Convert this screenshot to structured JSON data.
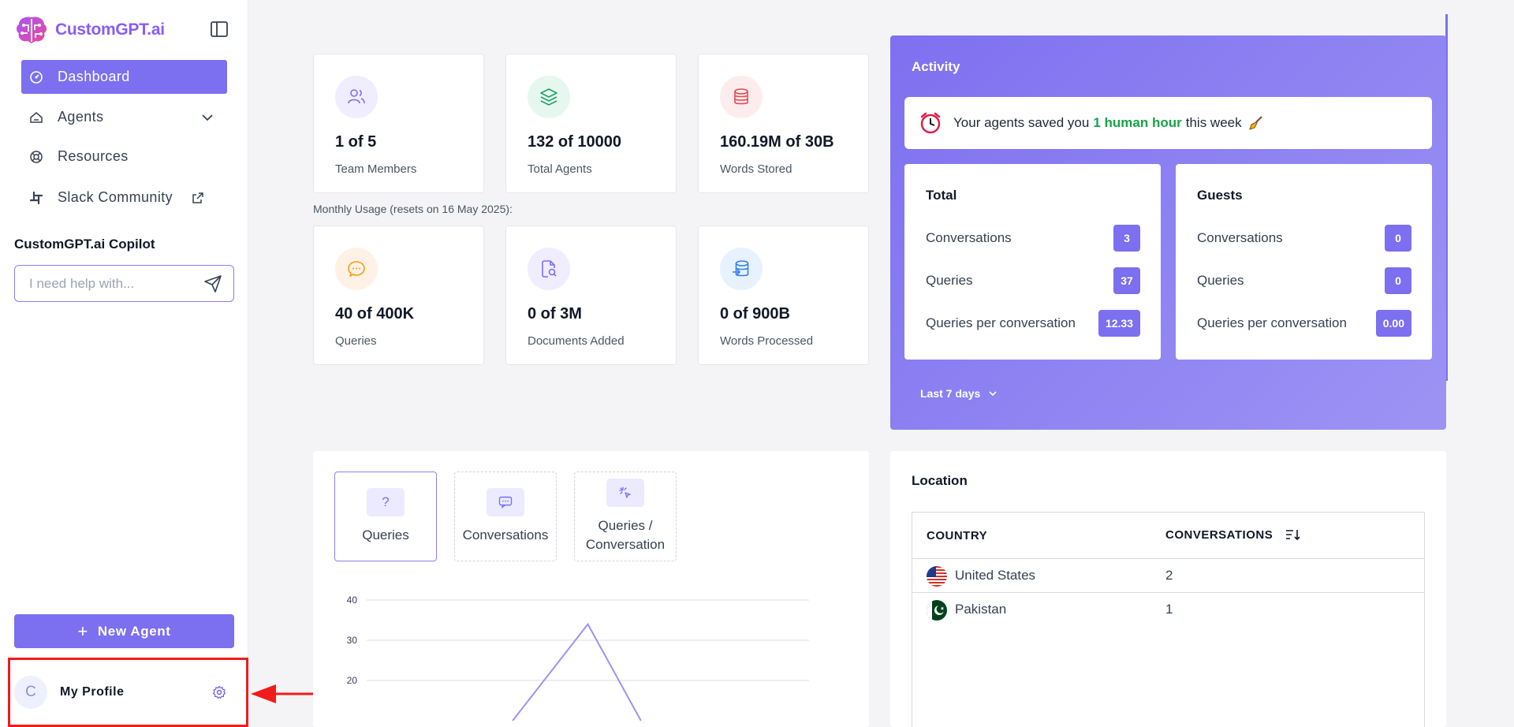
{
  "brand": {
    "name": "CustomGPT.ai",
    "accent": "#7c6ff0"
  },
  "sidebar": {
    "nav": [
      {
        "label": "Dashboard",
        "icon": "dashboard-icon",
        "active": true
      },
      {
        "label": "Agents",
        "icon": "agents-icon",
        "expandable": true
      },
      {
        "label": "Resources",
        "icon": "lifebuoy-icon"
      },
      {
        "label": "Slack Community",
        "icon": "slack-icon",
        "external": true
      }
    ],
    "copilot": {
      "title": "CustomGPT.ai Copilot",
      "placeholder": "I need help with..."
    },
    "new_agent_label": "New Agent",
    "profile": {
      "initial": "C",
      "name": "My Profile"
    }
  },
  "stats": {
    "team_members": {
      "value": "1 of 5",
      "label": "Team Members"
    },
    "total_agents": {
      "value": "132 of 10000",
      "label": "Total Agents"
    },
    "words_stored": {
      "value": "160.19M of 30B",
      "label": "Words Stored"
    },
    "monthly_note": "Monthly Usage (resets on 16 May 2025):",
    "queries": {
      "value": "40 of 400K",
      "label": "Queries"
    },
    "documents": {
      "value": "0 of 3M",
      "label": "Documents Added"
    },
    "words_processed": {
      "value": "0 of 900B",
      "label": "Words Processed"
    }
  },
  "activity": {
    "title": "Activity",
    "banner_prefix": "Your agents saved you",
    "banner_highlight": "1 human hour",
    "banner_suffix": "this week",
    "total": {
      "title": "Total",
      "rows": [
        {
          "label": "Conversations",
          "value": "3"
        },
        {
          "label": "Queries",
          "value": "37"
        },
        {
          "label": "Queries per conversation",
          "value": "12.33"
        }
      ]
    },
    "guests": {
      "title": "Guests",
      "rows": [
        {
          "label": "Conversations",
          "value": "0"
        },
        {
          "label": "Queries",
          "value": "0"
        },
        {
          "label": "Queries per conversation",
          "value": "0.00"
        }
      ]
    },
    "range": "Last 7 days"
  },
  "chart_tabs": [
    {
      "label": "Queries",
      "icon": "question-icon",
      "active": true
    },
    {
      "label": "Conversations",
      "icon": "chat-icon"
    },
    {
      "label": "Queries / Conversation",
      "icon": "sparkle-cursor-icon"
    }
  ],
  "chart_data": {
    "type": "line",
    "y_ticks": [
      "40",
      "30",
      "20"
    ],
    "ylim": [
      10,
      40
    ],
    "series": [
      {
        "values": [
          {
            "x": 0.33,
            "y": 10
          },
          {
            "x": 0.5,
            "y": 34
          },
          {
            "x": 0.62,
            "y": 10
          }
        ]
      }
    ]
  },
  "location": {
    "title": "Location",
    "headers": {
      "country": "COUNTRY",
      "conversations": "CONVERSATIONS"
    },
    "rows": [
      {
        "country": "United States",
        "flag": "us-flag-icon",
        "conversations": "2"
      },
      {
        "country": "Pakistan",
        "flag": "pk-flag-icon",
        "conversations": "1"
      }
    ]
  }
}
